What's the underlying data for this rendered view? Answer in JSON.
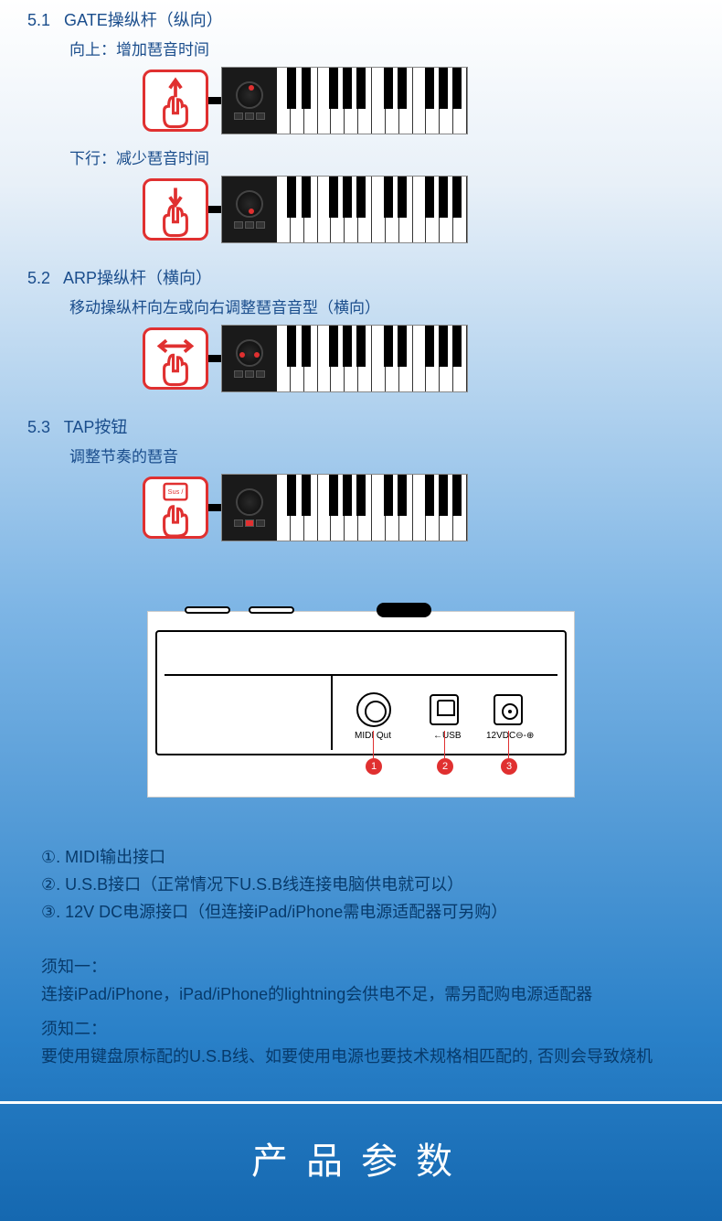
{
  "sections": {
    "s51": {
      "num": "5.1",
      "title": "GATE操纵杆（纵向）",
      "up_label": "向上：增加琶音时间",
      "down_label": "下行：减少琶音时间"
    },
    "s52": {
      "num": "5.2",
      "title": "ARP操纵杆（横向）",
      "desc": "移动操纵杆向左或向右调整琶音音型（横向）"
    },
    "s53": {
      "num": "5.3",
      "title": "TAP按钮",
      "desc": "调整节奏的琶音",
      "btn_label": "Sus /"
    }
  },
  "ports": {
    "midi_label": "MIDI Qut",
    "usb_label": "←USB",
    "dc_label": "12VDC⊖-⊕",
    "badges": [
      "1",
      "2",
      "3"
    ],
    "items": {
      "i1": "①. MIDI输出接口",
      "i2": "②. U.S.B接口（正常情况下U.S.B线连接电脑供电就可以）",
      "i3": "③. 12V DC电源接口（但连接iPad/iPhone需电源适配器可另购）"
    }
  },
  "notices": {
    "n1_title": "须知一：",
    "n1_text": "连接iPad/iPhone，iPad/iPhone的lightning会供电不足，需另配购电源适配器",
    "n2_title": "须知二：",
    "n2_text": "要使用键盘原标配的U.S.B线、如要使用电源也要技术规格相匹配的, 否则会导致烧机"
  },
  "footer": {
    "title": "产品参数"
  },
  "colors": {
    "accent": "#e03030",
    "text": "#1a4d8c"
  },
  "black_key_positions_pct": [
    5.5,
    12.8,
    27.3,
    34.5,
    41.8,
    56.3,
    63.5,
    78,
    85.3,
    92.5
  ]
}
